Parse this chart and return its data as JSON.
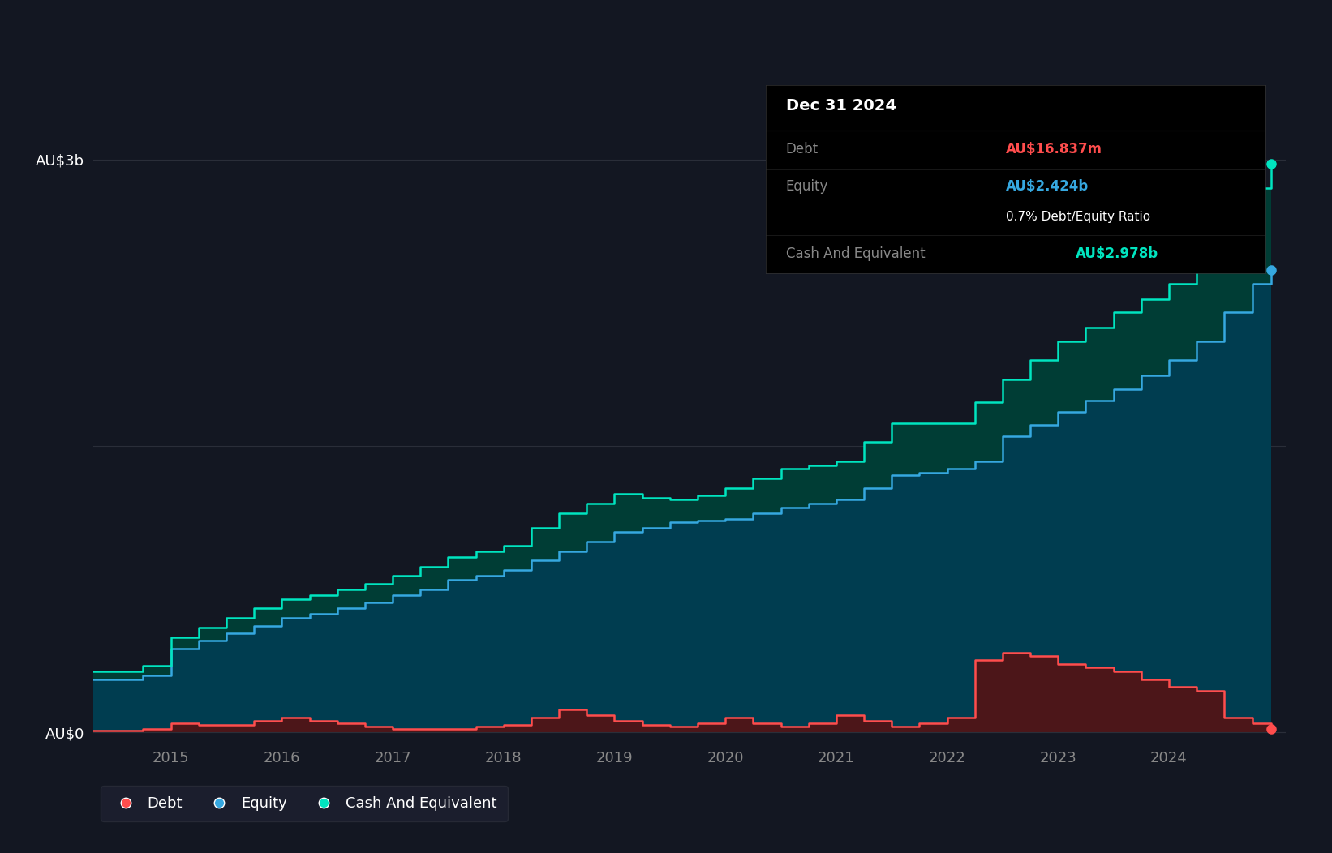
{
  "bg_color": "#131722",
  "plot_bg_color": "#131722",
  "grid_color": "#2a2e39",
  "years": [
    2014.3,
    2014.75,
    2015.0,
    2015.25,
    2015.5,
    2015.75,
    2016.0,
    2016.25,
    2016.5,
    2016.75,
    2017.0,
    2017.25,
    2017.5,
    2017.75,
    2018.0,
    2018.25,
    2018.5,
    2018.75,
    2019.0,
    2019.25,
    2019.5,
    2019.75,
    2020.0,
    2020.25,
    2020.5,
    2020.75,
    2021.0,
    2021.25,
    2021.5,
    2021.75,
    2022.0,
    2022.25,
    2022.5,
    2022.75,
    2023.0,
    2023.25,
    2023.5,
    2023.75,
    2024.0,
    2024.25,
    2024.5,
    2024.75,
    2024.92
  ],
  "debt": [
    0.01,
    0.02,
    0.05,
    0.04,
    0.04,
    0.06,
    0.08,
    0.06,
    0.05,
    0.03,
    0.02,
    0.02,
    0.02,
    0.03,
    0.04,
    0.08,
    0.12,
    0.09,
    0.06,
    0.04,
    0.03,
    0.05,
    0.08,
    0.05,
    0.03,
    0.05,
    0.09,
    0.06,
    0.03,
    0.05,
    0.08,
    0.38,
    0.42,
    0.4,
    0.36,
    0.34,
    0.32,
    0.28,
    0.24,
    0.22,
    0.08,
    0.05,
    0.017
  ],
  "equity": [
    0.28,
    0.3,
    0.44,
    0.48,
    0.52,
    0.56,
    0.6,
    0.62,
    0.65,
    0.68,
    0.72,
    0.75,
    0.8,
    0.82,
    0.85,
    0.9,
    0.95,
    1.0,
    1.05,
    1.07,
    1.1,
    1.11,
    1.12,
    1.15,
    1.18,
    1.2,
    1.22,
    1.28,
    1.35,
    1.36,
    1.38,
    1.42,
    1.55,
    1.61,
    1.68,
    1.74,
    1.8,
    1.87,
    1.95,
    2.05,
    2.2,
    2.35,
    2.424
  ],
  "cash": [
    0.32,
    0.35,
    0.5,
    0.55,
    0.6,
    0.65,
    0.7,
    0.72,
    0.75,
    0.78,
    0.82,
    0.87,
    0.92,
    0.95,
    0.98,
    1.07,
    1.15,
    1.2,
    1.25,
    1.23,
    1.22,
    1.24,
    1.28,
    1.33,
    1.38,
    1.4,
    1.42,
    1.52,
    1.62,
    1.62,
    1.62,
    1.73,
    1.85,
    1.95,
    2.05,
    2.12,
    2.2,
    2.27,
    2.35,
    2.52,
    2.72,
    2.85,
    2.978
  ],
  "debt_color": "#ff4d4d",
  "equity_color": "#36a8e0",
  "cash_color": "#00e5c0",
  "xlim": [
    2014.3,
    2025.05
  ],
  "ylim": [
    -0.05,
    3.3
  ],
  "yticks": [
    0,
    3.0
  ],
  "ytick_labels": [
    "AU$0",
    "AU$3b"
  ],
  "ytick_mid": 1.5,
  "ytick_mid_label": "",
  "xtick_years": [
    2015,
    2016,
    2017,
    2018,
    2019,
    2020,
    2021,
    2022,
    2023,
    2024
  ],
  "tooltip_title": "Dec 31 2024",
  "tooltip_debt_label": "Debt",
  "tooltip_debt_value": "AU$16.837m",
  "tooltip_equity_label": "Equity",
  "tooltip_equity_value": "AU$2.424b",
  "tooltip_ratio": "0.7% Debt/Equity Ratio",
  "tooltip_cash_label": "Cash And Equivalent",
  "tooltip_cash_value": "AU$2.978b",
  "legend_debt_label": "Debt",
  "legend_equity_label": "Equity",
  "legend_cash_label": "Cash And Equivalent"
}
